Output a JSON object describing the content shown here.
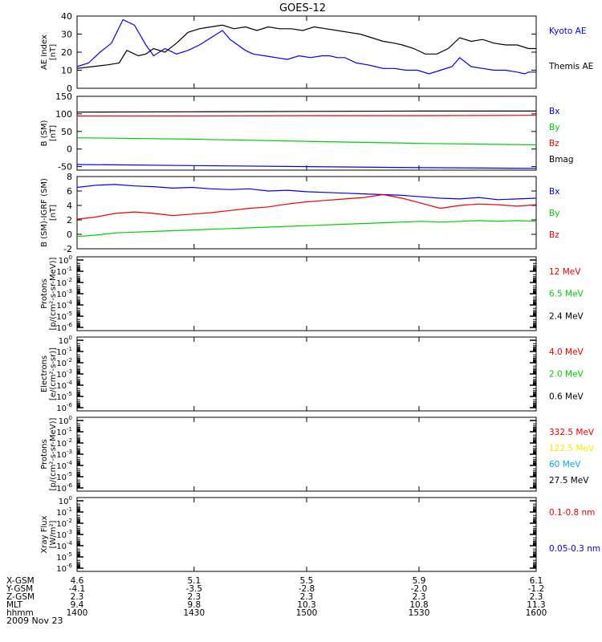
{
  "title": "GOES-12",
  "colors": {
    "black": "#000000",
    "blue": "#0000ee",
    "red": "#ee0000",
    "green": "#00cc00",
    "yellow": "#eeee00",
    "cyan": "#00aaee"
  },
  "chart_data": [
    {
      "type": "line",
      "id": "ae",
      "ylabel": [
        "AE Index",
        "[nT]"
      ],
      "ylim": [
        0,
        40
      ],
      "yticks": [
        "0",
        "10",
        "20",
        "30",
        "40"
      ],
      "ytick_values": [
        0,
        10,
        20,
        30,
        40
      ],
      "xlim": [
        0,
        120
      ],
      "legend": [
        {
          "label": "Kyoto AE",
          "color": "#0000ee"
        },
        {
          "label": "Themis AE",
          "color": "#000000"
        }
      ],
      "series": [
        {
          "name": "Kyoto AE",
          "color": "#0000ee",
          "x": [
            0,
            3,
            6,
            9,
            12,
            15,
            18,
            20,
            23,
            26,
            29,
            32,
            35,
            38,
            40,
            42,
            44,
            46,
            49,
            52,
            55,
            58,
            61,
            64,
            66,
            68,
            70,
            73,
            76,
            78,
            80,
            83,
            86,
            89,
            92,
            95,
            98,
            100,
            103,
            106,
            109,
            112,
            115,
            117,
            118,
            120
          ],
          "y": [
            12,
            14,
            20,
            25,
            38,
            35,
            24,
            18,
            22,
            19,
            21,
            24,
            28,
            32,
            27,
            24,
            21,
            19,
            18,
            17,
            16,
            18,
            17,
            18,
            18,
            17,
            17,
            14,
            13,
            12,
            11,
            11,
            10,
            10,
            8,
            10,
            12,
            17,
            12,
            11,
            10,
            10,
            9,
            8,
            9,
            9
          ]
        },
        {
          "name": "Themis AE",
          "color": "#000000",
          "x": [
            0,
            4,
            8,
            11,
            13,
            16,
            18,
            20,
            23,
            26,
            29,
            32,
            35,
            38,
            41,
            44,
            47,
            50,
            53,
            56,
            59,
            62,
            65,
            68,
            71,
            74,
            77,
            80,
            83,
            85,
            88,
            91,
            94,
            97,
            100,
            103,
            106,
            109,
            112,
            115,
            118,
            120
          ],
          "y": [
            11,
            12,
            13,
            14,
            21,
            18,
            19,
            22,
            20,
            25,
            31,
            33,
            34,
            35,
            33,
            34,
            32,
            34,
            33,
            33,
            32,
            34,
            33,
            32,
            31,
            30,
            28,
            26,
            25,
            24,
            22,
            19,
            19,
            22,
            28,
            26,
            27,
            25,
            24,
            24,
            22,
            22
          ]
        }
      ]
    },
    {
      "type": "line",
      "id": "bfield",
      "ylabel": [
        "B (SM)",
        "[nT]"
      ],
      "ylim": [
        -60,
        150
      ],
      "yticks": [
        "-50",
        "0",
        "50",
        "100",
        "150"
      ],
      "ytick_values": [
        -50,
        0,
        50,
        100,
        150
      ],
      "xlim": [
        0,
        120
      ],
      "legend": [
        {
          "label": "Bx",
          "color": "#0000ee"
        },
        {
          "label": "By",
          "color": "#00cc00"
        },
        {
          "label": "Bz",
          "color": "#ee0000"
        },
        {
          "label": "Bmag",
          "color": "#000000"
        }
      ],
      "series": [
        {
          "name": "Bmag",
          "color": "#000000",
          "x": [
            0,
            30,
            60,
            90,
            120
          ],
          "y": [
            105,
            106,
            107,
            108,
            108
          ]
        },
        {
          "name": "Bz",
          "color": "#ee0000",
          "x": [
            0,
            30,
            60,
            90,
            120
          ],
          "y": [
            94,
            94,
            95,
            95,
            96
          ]
        },
        {
          "name": "By",
          "color": "#00cc00",
          "x": [
            0,
            30,
            60,
            90,
            120
          ],
          "y": [
            32,
            28,
            22,
            16,
            12
          ]
        },
        {
          "name": "Bx",
          "color": "#0000ee",
          "x": [
            0,
            30,
            60,
            90,
            120
          ],
          "y": [
            -44,
            -47,
            -50,
            -53,
            -55
          ]
        }
      ]
    },
    {
      "type": "line",
      "id": "bsub",
      "ylabel": [
        "B (SM)-IGRF (SM)",
        "[nT]"
      ],
      "ylim": [
        -2,
        8
      ],
      "yticks": [
        "-2",
        "0",
        "2",
        "4",
        "6",
        "8"
      ],
      "ytick_values": [
        -2,
        0,
        2,
        4,
        6,
        8
      ],
      "xlim": [
        0,
        120
      ],
      "legend": [
        {
          "label": "Bx",
          "color": "#0000ee"
        },
        {
          "label": "By",
          "color": "#00cc00"
        },
        {
          "label": "Bz",
          "color": "#ee0000"
        }
      ],
      "series": [
        {
          "name": "Bx",
          "color": "#0000ee",
          "x": [
            0,
            5,
            10,
            15,
            20,
            25,
            30,
            35,
            40,
            45,
            50,
            55,
            60,
            65,
            70,
            75,
            80,
            85,
            90,
            95,
            100,
            105,
            110,
            115,
            120
          ],
          "y": [
            6.5,
            6.8,
            6.9,
            6.7,
            6.6,
            6.4,
            6.5,
            6.3,
            6.2,
            6.3,
            6.0,
            6.1,
            5.9,
            5.8,
            5.7,
            5.6,
            5.5,
            5.4,
            5.2,
            5.0,
            4.9,
            5.1,
            4.8,
            4.9,
            5.0
          ]
        },
        {
          "name": "Bz",
          "color": "#ee0000",
          "x": [
            0,
            5,
            10,
            15,
            20,
            25,
            30,
            35,
            40,
            45,
            50,
            55,
            60,
            65,
            70,
            75,
            80,
            85,
            90,
            95,
            100,
            105,
            110,
            115,
            120
          ],
          "y": [
            2.1,
            2.4,
            2.9,
            3.1,
            2.9,
            2.6,
            2.8,
            3.0,
            3.3,
            3.6,
            3.8,
            4.2,
            4.5,
            4.7,
            4.9,
            5.1,
            5.5,
            5.0,
            4.3,
            3.6,
            4.0,
            4.2,
            4.1,
            3.9,
            4.1
          ]
        },
        {
          "name": "By",
          "color": "#00cc00",
          "x": [
            0,
            5,
            10,
            15,
            20,
            25,
            30,
            35,
            40,
            45,
            50,
            55,
            60,
            65,
            70,
            75,
            80,
            85,
            90,
            95,
            100,
            105,
            110,
            115,
            120
          ],
          "y": [
            -0.3,
            -0.1,
            0.2,
            0.3,
            0.4,
            0.5,
            0.6,
            0.7,
            0.8,
            0.9,
            1.0,
            1.1,
            1.2,
            1.3,
            1.4,
            1.5,
            1.6,
            1.7,
            1.8,
            1.7,
            1.8,
            1.9,
            1.8,
            1.9,
            1.8
          ]
        }
      ]
    },
    {
      "type": "line",
      "id": "p1",
      "scale": "log",
      "ylabel": [
        "Protons",
        "[p/(cm²-s-sr-MeV)]"
      ],
      "ylim": [
        1e-06,
        1
      ],
      "yticks": [
        "10",
        "10",
        "10",
        "10",
        "10",
        "10",
        "10"
      ],
      "ytick_exp": [
        "0",
        "-1",
        "-2",
        "-3",
        "-4",
        "-5",
        "-6"
      ],
      "legend": [
        {
          "label": "12 MeV",
          "color": "#ee0000"
        },
        {
          "label": "6.5 MeV",
          "color": "#00cc00"
        },
        {
          "label": "2.4 MeV",
          "color": "#000000"
        }
      ],
      "series": []
    },
    {
      "type": "line",
      "id": "e1",
      "scale": "log",
      "ylabel": [
        "Electrons",
        "[e/(cm²-s-sr)]"
      ],
      "ylim": [
        1e-06,
        1
      ],
      "yticks": [
        "10",
        "10",
        "10",
        "10",
        "10",
        "10",
        "10"
      ],
      "ytick_exp": [
        "0",
        "-1",
        "-2",
        "-3",
        "-4",
        "-5",
        "-6"
      ],
      "legend": [
        {
          "label": "4.0 MeV",
          "color": "#ee0000"
        },
        {
          "label": "2.0 MeV",
          "color": "#00cc00"
        },
        {
          "label": "0.6 MeV",
          "color": "#000000"
        }
      ],
      "series": []
    },
    {
      "type": "line",
      "id": "p2",
      "scale": "log",
      "ylabel": [
        "Protons",
        "[p/(cm²-s-sr-MeV)]"
      ],
      "ylim": [
        1e-06,
        1
      ],
      "yticks": [
        "10",
        "10",
        "10",
        "10",
        "10",
        "10",
        "10"
      ],
      "ytick_exp": [
        "0",
        "-1",
        "-2",
        "-3",
        "-4",
        "-5",
        "-6"
      ],
      "legend": [
        {
          "label": "332.5 MeV",
          "color": "#ee0000"
        },
        {
          "label": "122.5 MeV",
          "color": "#eeee00"
        },
        {
          "label": "60 MeV",
          "color": "#00aaee"
        },
        {
          "label": "27.5 MeV",
          "color": "#000000"
        }
      ],
      "series": []
    },
    {
      "type": "line",
      "id": "x1",
      "scale": "log",
      "ylabel": [
        "Xray Flux",
        "[W/m²]"
      ],
      "ylim": [
        1e-06,
        1
      ],
      "yticks": [
        "10",
        "10",
        "10",
        "10",
        "10",
        "10",
        "10"
      ],
      "ytick_exp": [
        "0",
        "-1",
        "-2",
        "-3",
        "-4",
        "-5",
        "-6"
      ],
      "legend": [
        {
          "label": "0.1-0.8 nm",
          "color": "#ee0000"
        },
        {
          "label": "0.05-0.3 nm",
          "color": "#0000ee"
        }
      ],
      "series": []
    }
  ],
  "x_axis": {
    "row_labels": [
      "X-GSM",
      "Y-GSM",
      "Z-GSM",
      "MLT",
      "hhmm"
    ],
    "columns": [
      {
        "values": [
          "4.6",
          "-4.1",
          "2.3",
          "9.4",
          "1400"
        ]
      },
      {
        "values": [
          "5.1",
          "-3.5",
          "2.3",
          "9.8",
          "1430"
        ]
      },
      {
        "values": [
          "5.5",
          "-2.8",
          "2.3",
          "10.3",
          "1500"
        ]
      },
      {
        "values": [
          "5.9",
          "-2.0",
          "2.3",
          "10.8",
          "1530"
        ]
      },
      {
        "values": [
          "6.1",
          "-1.2",
          "2.3",
          "11.3",
          "1600"
        ]
      }
    ],
    "date": "2009 Nov 23"
  }
}
